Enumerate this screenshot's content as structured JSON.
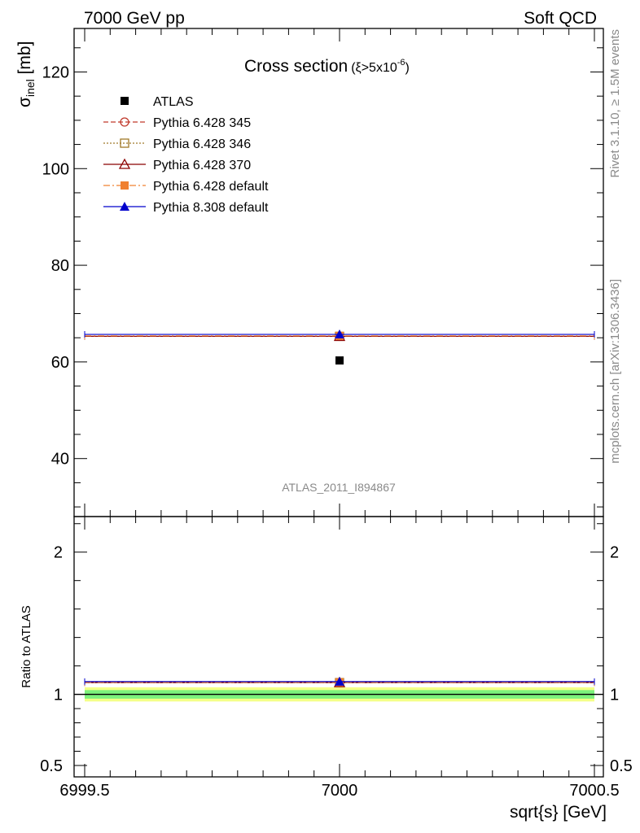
{
  "header": {
    "left": "7000 GeV pp",
    "right": "Soft QCD"
  },
  "side_text": {
    "rivet": "Rivet 3.1.10, ≥ 1.5M events",
    "mcplots": "mcplots.cern.ch [arXiv:1306.3436]"
  },
  "watermark": "ATLAS_2011_I894867",
  "colors": {
    "atlas": "#000000",
    "p345": "#c0392b",
    "p346": "#a07a2a",
    "p370": "#8b0000",
    "p6def": "#f08030",
    "p8def": "#0000cc",
    "band_inner": "#7cf27c",
    "band_outer": "#f4ff88"
  },
  "chart_data": [
    {
      "type": "scatter",
      "title_main": "Cross section",
      "title_sub": "(ξ>5x10",
      "title_sup": "-6",
      "title_close": ")",
      "ylabel_main": "σ",
      "ylabel_sub": "inel",
      "ylabel_unit": " [mb]",
      "xlim": [
        6999.5,
        7000.5
      ],
      "ylim": [
        28,
        129
      ],
      "y_ticks": [
        40,
        60,
        80,
        100,
        120
      ],
      "y_tick_labels": [
        "40",
        "60",
        "80",
        "100",
        "120"
      ],
      "series": [
        {
          "name": "ATLAS",
          "key": "atlas",
          "marker": "square-filled",
          "line": "none",
          "x": [
            7000
          ],
          "y": [
            60.3
          ]
        },
        {
          "name": "Pythia 6.428 345",
          "key": "p345",
          "marker": "circle-open",
          "line": "dashed",
          "x": [
            7000
          ],
          "y": [
            65.3
          ]
        },
        {
          "name": "Pythia 6.428 346",
          "key": "p346",
          "marker": "square-open",
          "line": "dotted",
          "x": [
            7000
          ],
          "y": [
            65.3
          ]
        },
        {
          "name": "Pythia 6.428 370",
          "key": "p370",
          "marker": "triangle-open",
          "line": "solid",
          "x": [
            7000
          ],
          "y": [
            65.3
          ]
        },
        {
          "name": "Pythia 6.428 default",
          "key": "p6def",
          "marker": "square-filled",
          "line": "dashdot",
          "x": [
            7000
          ],
          "y": [
            65.4
          ]
        },
        {
          "name": "Pythia 8.308 default",
          "key": "p8def",
          "marker": "triangle-filled",
          "line": "solid",
          "x": [
            7000
          ],
          "y": [
            65.7
          ]
        }
      ]
    },
    {
      "type": "scatter",
      "ylabel": "Ratio to ATLAS",
      "xlabel": "sqrt{s} [GeV]",
      "xlim": [
        6999.5,
        7000.5
      ],
      "ylim": [
        0.42,
        2.25
      ],
      "x_ticks": [
        6999.5,
        7000,
        7000.5
      ],
      "x_tick_labels": [
        "6999.5",
        "7000",
        "7000.5"
      ],
      "y_ticks": [
        0.5,
        1,
        2
      ],
      "y_tick_labels": [
        "0.5",
        "1",
        "2"
      ],
      "reference": 1,
      "band_inner": [
        0.97,
        1.03
      ],
      "band_outer": [
        0.95,
        1.05
      ],
      "series": [
        {
          "name": "Pythia 6.428 345",
          "key": "p345",
          "x": [
            7000
          ],
          "y": [
            1.083
          ]
        },
        {
          "name": "Pythia 6.428 346",
          "key": "p346",
          "x": [
            7000
          ],
          "y": [
            1.083
          ]
        },
        {
          "name": "Pythia 6.428 370",
          "key": "p370",
          "x": [
            7000
          ],
          "y": [
            1.083
          ]
        },
        {
          "name": "Pythia 6.428 default",
          "key": "p6def",
          "x": [
            7000
          ],
          "y": [
            1.085
          ]
        },
        {
          "name": "Pythia 8.308 default",
          "key": "p8def",
          "x": [
            7000
          ],
          "y": [
            1.09
          ]
        }
      ]
    }
  ]
}
